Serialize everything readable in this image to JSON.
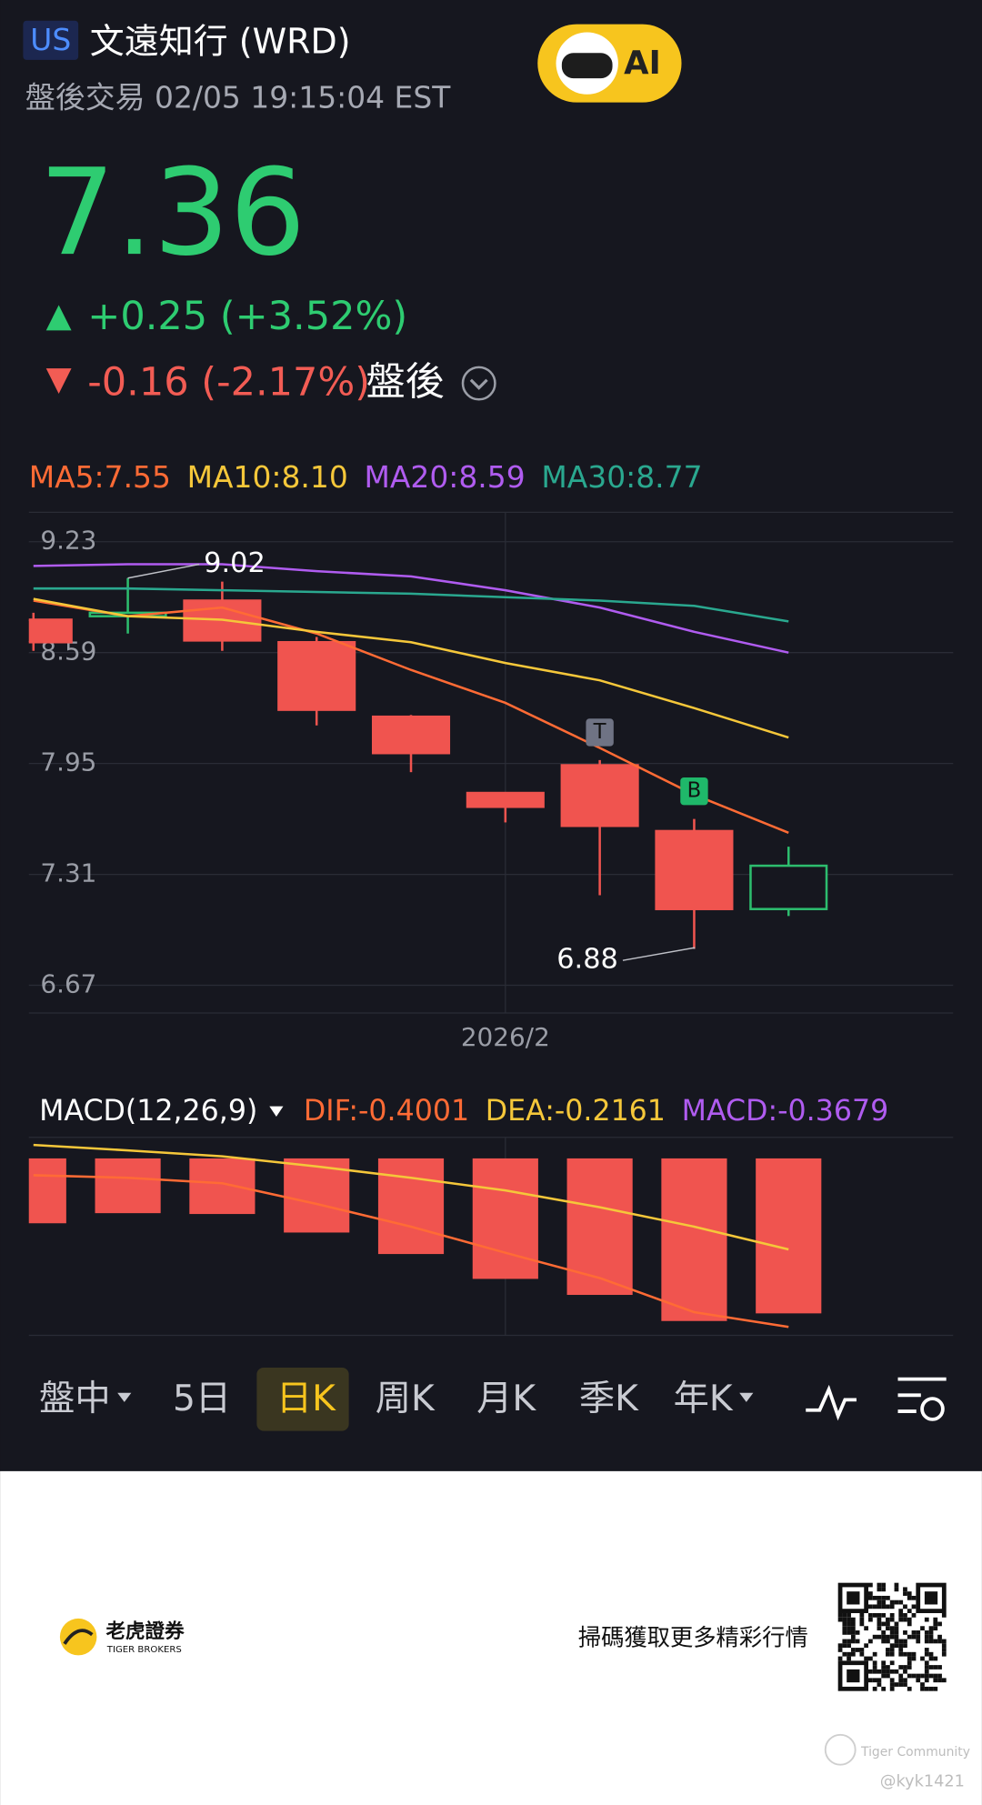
{
  "header": {
    "market": "US",
    "title": "文遠知行 (WRD)",
    "session": "盤後交易 02/05 19:15:04 EST",
    "ai": "AI",
    "price": "7.36",
    "change": "+0.25 (+3.52%)",
    "after_change": "-0.16 (-2.17%)",
    "after_label": "盤後"
  },
  "chart_data": [
    {
      "type": "candlestick",
      "candles": [
        {
          "o": 8.78,
          "h": 8.82,
          "l": 8.6,
          "c": 8.65
        },
        {
          "o": 8.8,
          "h": 9.02,
          "l": 8.7,
          "c": 8.82
        },
        {
          "o": 8.89,
          "h": 9.0,
          "l": 8.6,
          "c": 8.66
        },
        {
          "o": 8.65,
          "h": 8.68,
          "l": 8.17,
          "c": 8.26
        },
        {
          "o": 8.22,
          "h": 8.23,
          "l": 7.9,
          "c": 8.01
        },
        {
          "o": 7.78,
          "h": 7.78,
          "l": 7.61,
          "c": 7.7
        },
        {
          "o": 7.94,
          "h": 7.97,
          "l": 7.19,
          "c": 7.59,
          "marker": "T"
        },
        {
          "o": 7.56,
          "h": 7.63,
          "l": 6.88,
          "c": 7.11,
          "marker": "B"
        },
        {
          "o": 7.11,
          "h": 7.47,
          "l": 7.07,
          "c": 7.36
        }
      ],
      "up_color": "#2dbd6e",
      "down_color": "#f0544f",
      "ylim": [
        6.51,
        9.4
      ],
      "yticks": [
        9.23,
        8.59,
        7.95,
        7.31,
        6.67
      ],
      "grid": true,
      "x_label": "2026/2",
      "series": [
        {
          "name": "MA5",
          "legend_label": "MA5:7.55",
          "color": "#ff6b35",
          "values": [
            8.89,
            8.8,
            8.85,
            8.7,
            8.49,
            8.3,
            8.04,
            7.77,
            7.55
          ]
        },
        {
          "name": "MA10",
          "legend_label": "MA10:8.10",
          "color": "#f5c73a",
          "values": [
            8.9,
            8.8,
            8.78,
            8.71,
            8.65,
            8.53,
            8.43,
            8.27,
            8.1
          ]
        },
        {
          "name": "MA20",
          "legend_label": "MA20:8.59",
          "color": "#b05cf0",
          "values": [
            9.09,
            9.1,
            9.1,
            9.06,
            9.03,
            8.95,
            8.85,
            8.71,
            8.59
          ]
        },
        {
          "name": "MA30",
          "legend_label": "MA30:8.77",
          "color": "#2aa88f",
          "values": [
            8.96,
            8.96,
            8.95,
            8.94,
            8.93,
            8.91,
            8.89,
            8.86,
            8.77
          ]
        }
      ]
    },
    {
      "type": "macd",
      "title": "MACD(12,26,9)",
      "ylim": [
        -0.42,
        0.05
      ],
      "series": [
        {
          "name": "DIF",
          "legend_label": "DIF:-0.4001",
          "color": "#ff6b35",
          "values": [
            -0.04,
            -0.046,
            -0.059,
            -0.108,
            -0.162,
            -0.224,
            -0.284,
            -0.365,
            -0.4001
          ]
        },
        {
          "name": "DEA",
          "legend_label": "DEA:-0.2161",
          "color": "#f5c73a",
          "values": [
            0.032,
            0.019,
            0.005,
            -0.019,
            -0.046,
            -0.076,
            -0.116,
            -0.162,
            -0.2161
          ]
        }
      ],
      "bars": {
        "name": "MACD",
        "legend_label": "MACD:-0.3679",
        "color": "#b05cf0",
        "bar_color": "#f0544f",
        "values": [
          -0.154,
          -0.13,
          -0.132,
          -0.176,
          -0.227,
          -0.286,
          -0.324,
          -0.386,
          -0.3679
        ]
      }
    }
  ],
  "tabs": [
    {
      "label": "盤中",
      "dropdown": true
    },
    {
      "label": "5日"
    },
    {
      "label": "日K",
      "active": true
    },
    {
      "label": "周K"
    },
    {
      "label": "月K"
    },
    {
      "label": "季K"
    },
    {
      "label": "年K",
      "dropdown": true
    }
  ],
  "footer": {
    "brand": "老虎證券",
    "brand_en": "TIGER BROKERS",
    "qr_text": "掃碼獲取更多精彩行情",
    "community": "Tiger Community",
    "user": "@kyk1421"
  }
}
